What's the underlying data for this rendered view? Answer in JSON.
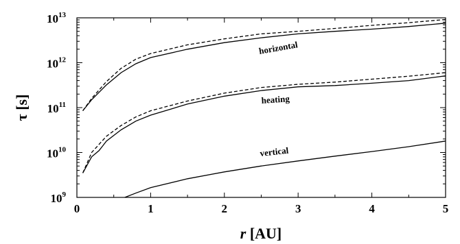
{
  "chart_data": {
    "type": "line",
    "title": "",
    "xlabel": "r [AU]",
    "xlabel_var": "r",
    "xlabel_unit": "[AU]",
    "ylabel": "τ [s]",
    "ylabel_var": "τ",
    "ylabel_unit": "[s]",
    "xlim": [
      0,
      5
    ],
    "ylim": [
      1000000000.0,
      10000000000000.0
    ],
    "yscale": "log",
    "grid": false,
    "x_ticks": [
      "0",
      "1",
      "2",
      "3",
      "4",
      "5"
    ],
    "y_ticks": [
      {
        "base": "10",
        "exp": "9"
      },
      {
        "base": "10",
        "exp": "10"
      },
      {
        "base": "10",
        "exp": "11"
      },
      {
        "base": "10",
        "exp": "12"
      },
      {
        "base": "10",
        "exp": "13"
      }
    ],
    "annotations": [
      "horizontal",
      "heating",
      "vertical"
    ],
    "series": [
      {
        "label": "horizontal",
        "style": "solid",
        "x": [
          0.08,
          0.2,
          0.4,
          0.6,
          0.8,
          1.0,
          1.5,
          2.0,
          2.5,
          3.0,
          3.5,
          4.0,
          4.5,
          5.0
        ],
        "y": [
          85000000000.0,
          150000000000.0,
          320000000000.0,
          600000000000.0,
          950000000000.0,
          1300000000000.0,
          2000000000000.0,
          2800000000000.0,
          3600000000000.0,
          4400000000000.0,
          5000000000000.0,
          5600000000000.0,
          6400000000000.0,
          7600000000000.0
        ]
      },
      {
        "label": "horizontal",
        "style": "dashed",
        "x": [
          0.08,
          0.2,
          0.4,
          0.6,
          0.8,
          1.0,
          1.5,
          2.0,
          2.5,
          3.0,
          3.5,
          4.0,
          4.5,
          5.0
        ],
        "y": [
          85000000000.0,
          160000000000.0,
          380000000000.0,
          750000000000.0,
          1200000000000.0,
          1600000000000.0,
          2500000000000.0,
          3400000000000.0,
          4400000000000.0,
          5000000000000.0,
          5800000000000.0,
          6800000000000.0,
          7800000000000.0,
          9200000000000.0
        ]
      },
      {
        "label": "heating",
        "style": "solid",
        "x": [
          0.08,
          0.2,
          0.3,
          0.35,
          0.4,
          0.6,
          0.8,
          1.0,
          1.5,
          2.0,
          2.5,
          3.0,
          3.5,
          4.0,
          4.5,
          5.0
        ],
        "y": [
          3500000000.0,
          8000000000.0,
          11000000000.0,
          14000000000.0,
          18000000000.0,
          32000000000.0,
          50000000000.0,
          68000000000.0,
          120000000000.0,
          180000000000.0,
          240000000000.0,
          290000000000.0,
          310000000000.0,
          350000000000.0,
          400000000000.0,
          510000000000.0
        ]
      },
      {
        "label": "heating",
        "style": "dashed",
        "x": [
          0.08,
          0.2,
          0.4,
          0.6,
          0.8,
          1.0,
          1.5,
          2.0,
          2.5,
          3.0,
          3.5,
          4.0,
          4.5,
          5.0
        ],
        "y": [
          3500000000.0,
          10000000000.0,
          23000000000.0,
          40000000000.0,
          62000000000.0,
          85000000000.0,
          140000000000.0,
          210000000000.0,
          280000000000.0,
          330000000000.0,
          370000000000.0,
          430000000000.0,
          500000000000.0,
          600000000000.0
        ]
      },
      {
        "label": "vertical",
        "style": "solid",
        "x": [
          0.65,
          0.8,
          1.0,
          1.5,
          2.0,
          2.5,
          3.0,
          3.5,
          4.0,
          4.5,
          5.0
        ],
        "y": [
          1000000000.0,
          1250000000.0,
          1650000000.0,
          2600000000.0,
          3700000000.0,
          5000000000.0,
          6500000000.0,
          8300000000.0,
          10500000000.0,
          13500000000.0,
          18000000000.0
        ]
      }
    ]
  }
}
